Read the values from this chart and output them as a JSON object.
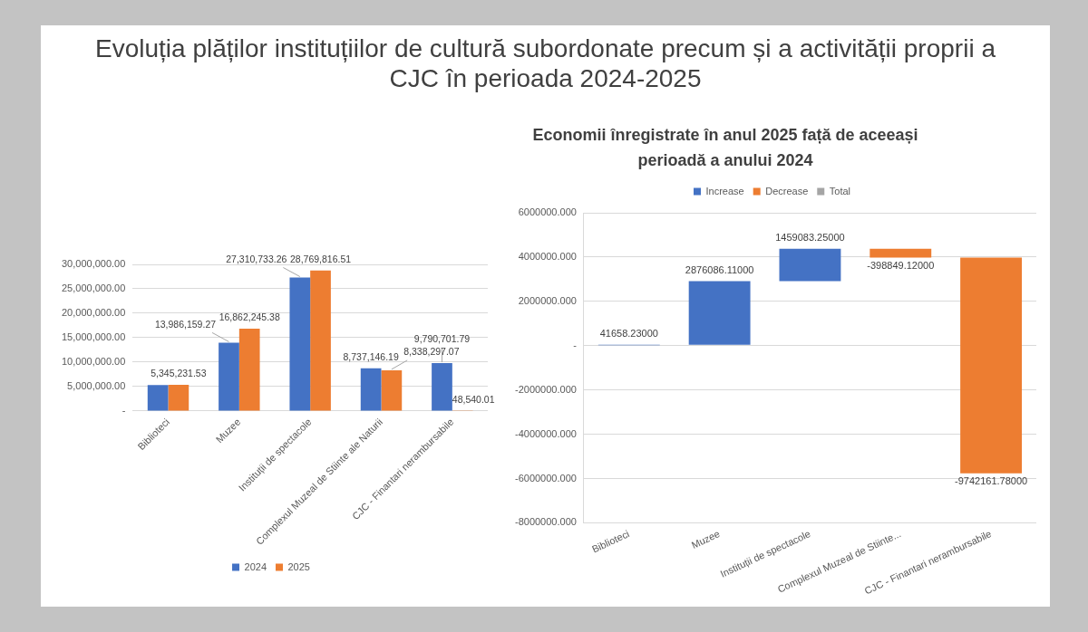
{
  "chart_data": [
    {
      "type": "bar",
      "title": "Evoluția plăților instituțiilor de cultură subordonate precum și a activității proprii a CJC în perioada 2024-2025",
      "categories": [
        "Biblioteci",
        "Muzee",
        "Instituții de spectacole",
        "Complexul Muzeal de Stiinte ale Naturii",
        "CJC - Finantari nerambursabile"
      ],
      "series": [
        {
          "name": "2024",
          "color": "#4472c4",
          "values": [
            5300000,
            13986159.27,
            27310733.26,
            8737146.19,
            9790701.79
          ],
          "value_labels": [
            null,
            "13,986,159.27",
            "27,310,733.26",
            "8,737,146.19",
            "9,790,701.79"
          ]
        },
        {
          "name": "2025",
          "color": "#ed7d31",
          "values": [
            5345231.53,
            16862245.38,
            28769816.51,
            8338297.07,
            48540.01
          ],
          "value_labels": [
            "5,345,231.53",
            "16,862,245.38",
            "28,769,816.51",
            "8,338,297.07",
            "48,540.01"
          ]
        }
      ],
      "ylim": [
        0,
        30000000
      ],
      "yticks": [
        {
          "value": 0,
          "label": "-"
        },
        {
          "value": 5000000,
          "label": "5,000,000.00"
        },
        {
          "value": 10000000,
          "label": "10,000,000.00"
        },
        {
          "value": 15000000,
          "label": "15,000,000.00"
        },
        {
          "value": 20000000,
          "label": "20,000,000.00"
        },
        {
          "value": 25000000,
          "label": "25,000,000.00"
        },
        {
          "value": 30000000,
          "label": "30,000,000.00"
        }
      ],
      "grid": "y",
      "legend": "bottom"
    },
    {
      "type": "bar",
      "title": "Economii înregistrate în anul 2025 față de aceeași perioadă a anului 2024",
      "categories": [
        "Biblioteci",
        "Muzee",
        "Instituții de spectacole",
        "Complexul Muzeal de Stiinte...",
        "CJC - Finantari nerambursabile"
      ],
      "series": [
        {
          "name": "Increase",
          "color": "#4472c4",
          "values": [
            41658.23,
            2876086.11,
            1459083.25,
            null,
            null
          ],
          "base": [
            0,
            41658.23,
            2917744.34,
            null,
            null
          ],
          "value_labels": [
            "41658.23000",
            "2876086.11000",
            "1459083.25000",
            null,
            null
          ]
        },
        {
          "name": "Decrease",
          "color": "#ed7d31",
          "values": [
            null,
            null,
            null,
            -398849.12,
            -9742161.78
          ],
          "base": [
            null,
            null,
            null,
            4376827.59,
            3977978.47
          ],
          "value_labels": [
            null,
            null,
            null,
            "-398849.12000",
            "-9742161.78000"
          ]
        },
        {
          "name": "Total",
          "color": "#a5a5a5",
          "values": [
            null,
            null,
            null,
            null,
            null
          ]
        }
      ],
      "ylim": [
        -8000000,
        6000000
      ],
      "yticks": [
        {
          "value": -8000000,
          "label": "-8000000.000"
        },
        {
          "value": -6000000,
          "label": "-6000000.000"
        },
        {
          "value": -4000000,
          "label": "-4000000.000"
        },
        {
          "value": -2000000,
          "label": "-2000000.000"
        },
        {
          "value": 0,
          "label": "-"
        },
        {
          "value": 2000000,
          "label": "2000000.000"
        },
        {
          "value": 4000000,
          "label": "4000000.000"
        },
        {
          "value": 6000000,
          "label": "6000000.000"
        }
      ],
      "grid": "y",
      "legend": "top"
    }
  ]
}
